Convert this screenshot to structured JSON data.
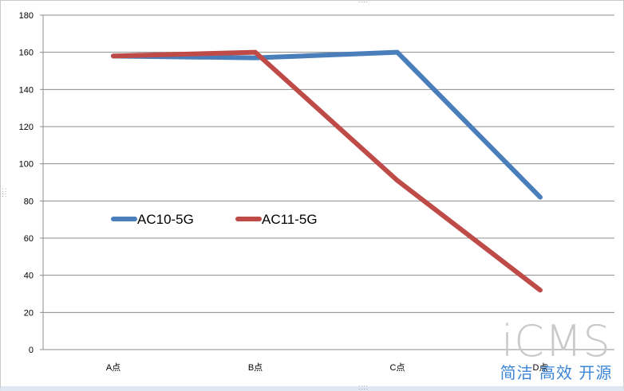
{
  "chart_data": {
    "type": "line",
    "categories": [
      "A点",
      "B点",
      "C点",
      "D点"
    ],
    "series": [
      {
        "name": "AC10-5G",
        "color": "#4a7ebb",
        "values": [
          158,
          157,
          160,
          82
        ]
      },
      {
        "name": "AC11-5G",
        "color": "#be4b48",
        "values": [
          158,
          160,
          91,
          32
        ]
      }
    ],
    "yticks": [
      0,
      20,
      40,
      60,
      80,
      100,
      120,
      140,
      160,
      180
    ],
    "ylim": [
      0,
      180
    ],
    "grid": true,
    "legend_position": "left-middle"
  },
  "watermark": {
    "brand": "iCMS",
    "tagline": "简洁 高效 开源"
  }
}
